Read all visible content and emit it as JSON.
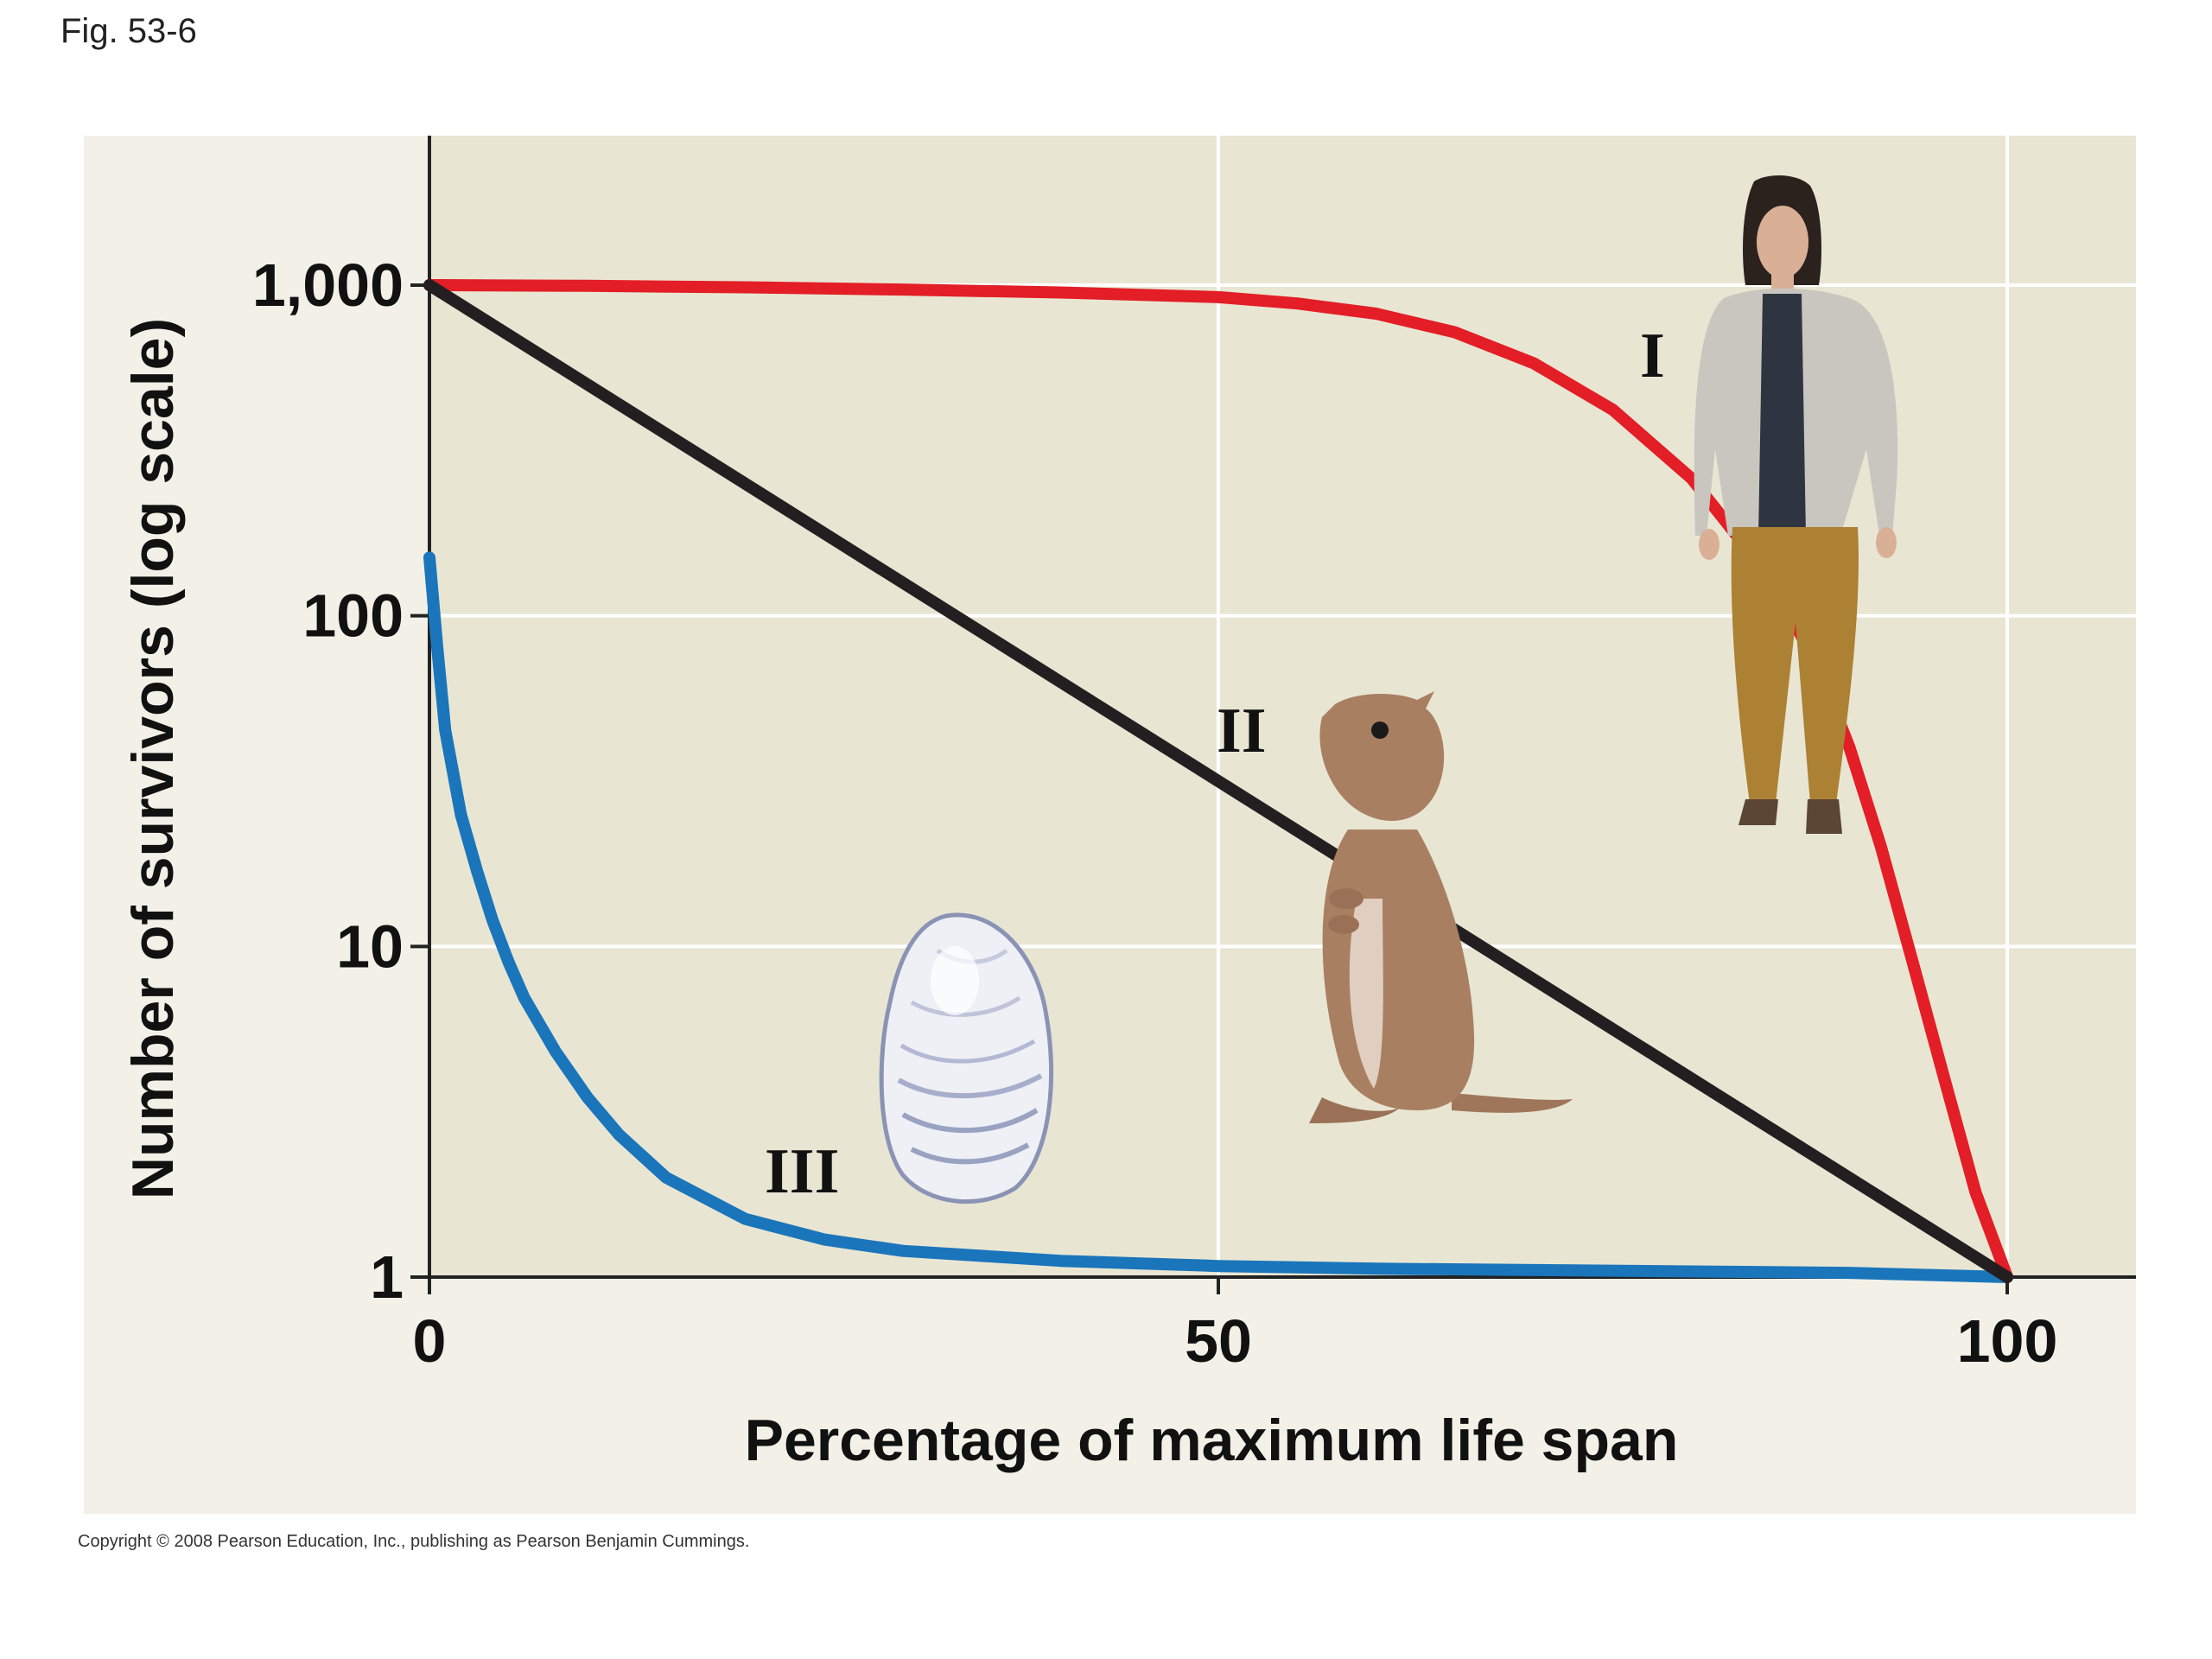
{
  "figure_label": "Fig. 53-6",
  "copyright": "Copyright © 2008 Pearson Education, Inc., publishing as Pearson Benjamin Cummings.",
  "colors": {
    "type_I": "#e31e26",
    "type_II": "#231f20",
    "type_III": "#1a75bb",
    "panel": "#f3f1e7",
    "plot_bg": "#e8e6d3",
    "grid": "#ffffff"
  },
  "icons": [
    "woman-illustration",
    "ground-squirrel-illustration",
    "oyster-illustration"
  ],
  "chart_data": {
    "type": "line",
    "title": "",
    "xlabel": "Percentage of maximum life span",
    "ylabel": "Number of survivors (log scale)",
    "x_ticks": [
      0,
      50,
      100
    ],
    "x_tick_labels": [
      "0",
      "50",
      "100"
    ],
    "y_ticks": [
      1,
      10,
      100,
      1000
    ],
    "y_tick_labels": [
      "1",
      "10",
      "100",
      "1,000"
    ],
    "xlim": [
      0,
      109
    ],
    "ylim": [
      1,
      3000
    ],
    "y_scale": "log",
    "grid": true,
    "legend": "none",
    "series": [
      {
        "name": "I",
        "x": [
          0,
          10,
          20,
          30,
          40,
          50,
          55,
          60,
          65,
          70,
          75,
          80,
          85,
          88,
          90,
          92,
          94,
          96,
          98,
          100
        ],
        "y": [
          1000,
          995,
          985,
          970,
          950,
          920,
          880,
          820,
          720,
          580,
          420,
          260,
          130,
          70,
          40,
          20,
          9,
          4,
          1.8,
          1
        ]
      },
      {
        "name": "II",
        "x": [
          0,
          100
        ],
        "y": [
          1000,
          1
        ]
      },
      {
        "name": "III",
        "x": [
          0,
          0.5,
          1,
          2,
          3,
          4,
          5,
          6,
          8,
          10,
          12,
          15,
          20,
          25,
          30,
          40,
          50,
          60,
          70,
          80,
          90,
          100
        ],
        "y": [
          150,
          80,
          45,
          25,
          17,
          12,
          9,
          7,
          4.8,
          3.5,
          2.7,
          2.0,
          1.5,
          1.3,
          1.2,
          1.12,
          1.08,
          1.06,
          1.05,
          1.04,
          1.03,
          1.0
        ]
      }
    ]
  }
}
